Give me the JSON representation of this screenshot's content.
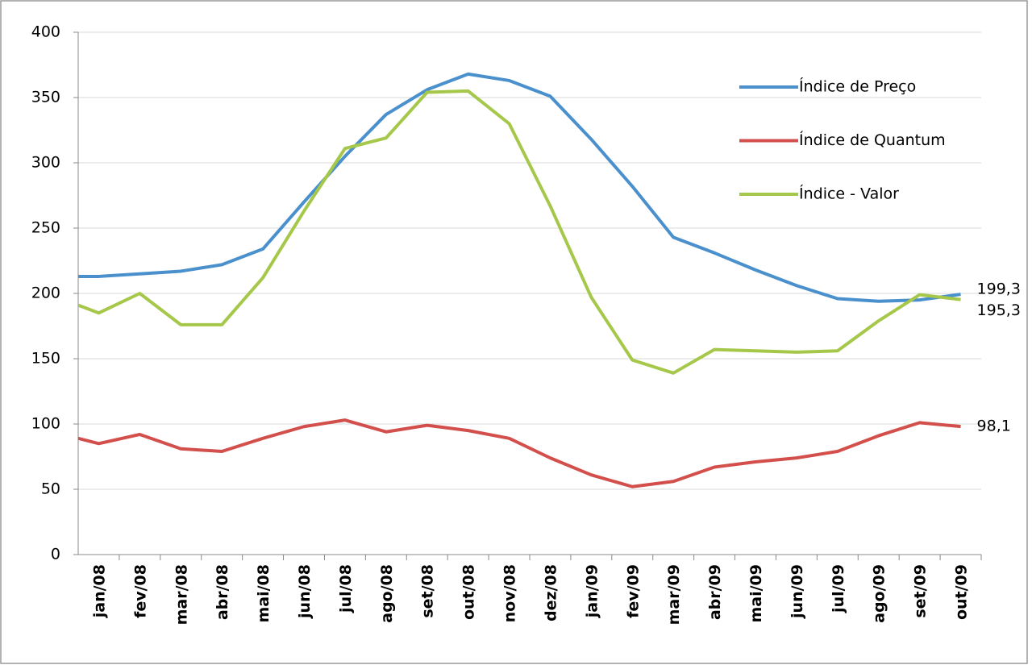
{
  "chart_data": {
    "type": "line",
    "categories": [
      null,
      "jan/08",
      "fev/08",
      "mar/08",
      "abr/08",
      "mai/08",
      "jun/08",
      "jul/08",
      "ago/08",
      "set/08",
      "out/08",
      "nov/08",
      "dez/08",
      "jan/09",
      "fev/09",
      "mar/09",
      "abr/09",
      "mai/09",
      "jun/09",
      "jul/09",
      "ago/09",
      "set/09",
      "out/09"
    ],
    "series": [
      {
        "name": "Índice de Preço",
        "color": "#4a90cc",
        "values": [
          213,
          213,
          215,
          217,
          222,
          234,
          270,
          305,
          337,
          356,
          368,
          363,
          351,
          318,
          282,
          243,
          231,
          218,
          206,
          196,
          194,
          195,
          199.3
        ],
        "value_labels": [
          null,
          null,
          null,
          null,
          null,
          null,
          null,
          null,
          null,
          null,
          null,
          null,
          null,
          null,
          null,
          null,
          null,
          null,
          null,
          null,
          null,
          null,
          "199,3"
        ]
      },
      {
        "name": "Índice de Quantum",
        "color": "#d24f4c",
        "values": [
          93,
          85,
          92,
          81,
          79,
          89,
          98,
          103,
          94,
          99,
          95,
          89,
          74,
          61,
          52,
          56,
          67,
          71,
          74,
          79,
          91,
          101,
          98.1
        ],
        "value_labels": [
          null,
          null,
          null,
          null,
          null,
          null,
          null,
          null,
          null,
          null,
          null,
          null,
          null,
          null,
          null,
          null,
          null,
          null,
          null,
          null,
          null,
          null,
          "98,1"
        ]
      },
      {
        "name": "Índice - Valor",
        "color": "#a6c84a",
        "values": [
          197,
          185,
          200,
          176,
          176,
          212,
          263,
          311,
          319,
          354,
          355,
          330,
          267,
          197,
          149,
          139,
          157,
          156,
          155,
          156,
          179,
          199,
          195.3
        ],
        "value_labels": [
          null,
          null,
          null,
          null,
          null,
          null,
          null,
          null,
          null,
          null,
          null,
          null,
          null,
          null,
          null,
          null,
          null,
          null,
          null,
          null,
          null,
          null,
          "195,3"
        ]
      }
    ],
    "ylim": [
      0,
      400
    ],
    "yticks": [
      0,
      50,
      100,
      150,
      200,
      250,
      300,
      350,
      400
    ],
    "grid": true,
    "legend": "right"
  }
}
